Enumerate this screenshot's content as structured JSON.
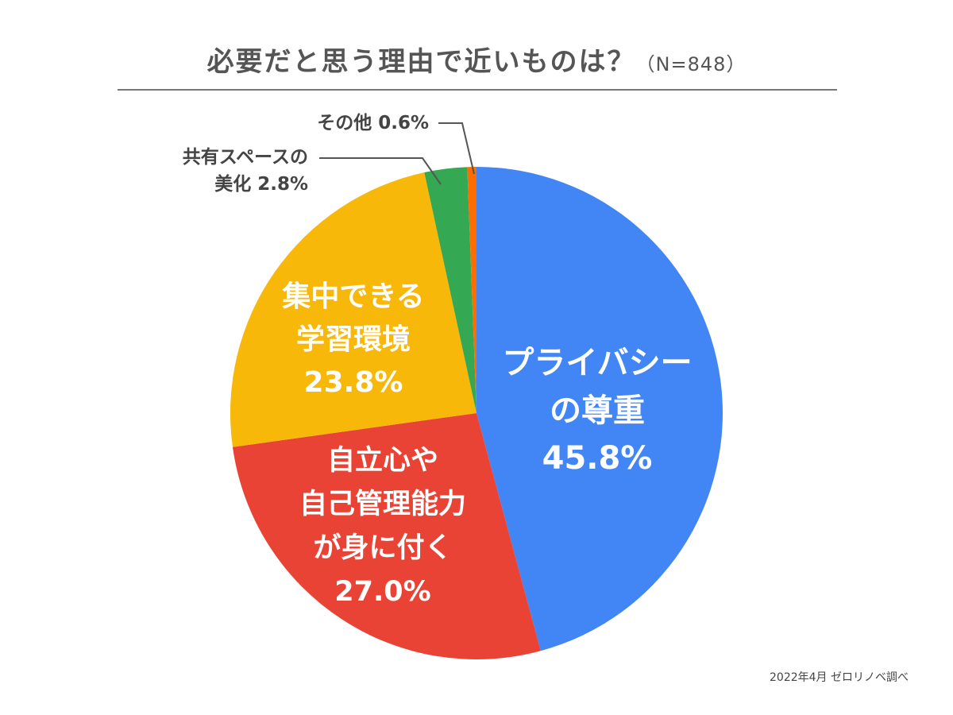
{
  "title": {
    "main": "必要だと思う理由で近いものは？",
    "sample": "（N=848）"
  },
  "source": "2022年4月 ゼロリノベ調べ",
  "chart_data": {
    "type": "pie",
    "title": "必要だと思う理由で近いものは？（N=848）",
    "start": "12 o'clock",
    "direction": "clockwise",
    "slices": [
      {
        "key": "privacy",
        "lines": [
          "プライバシー",
          "の尊重",
          "45.8%"
        ],
        "value": 45.8,
        "color": "#4285F4",
        "label_position": "inside"
      },
      {
        "key": "independence",
        "lines": [
          "自立心や",
          "自己管理能力",
          "が身に付く",
          "27.0%"
        ],
        "value": 27.0,
        "color": "#E94335",
        "label_position": "inside"
      },
      {
        "key": "study",
        "lines": [
          "集中できる",
          "学習環境",
          "23.8%"
        ],
        "value": 23.8,
        "color": "#F7B80A",
        "label_position": "inside"
      },
      {
        "key": "shared",
        "lines": [
          "共有スペースの",
          "美化 2.8%"
        ],
        "value": 2.8,
        "color": "#34A853",
        "label_position": "outside"
      },
      {
        "key": "other",
        "lines": [
          "その他 0.6%"
        ],
        "value": 0.6,
        "color": "#FF6D01",
        "label_position": "outside"
      }
    ]
  }
}
